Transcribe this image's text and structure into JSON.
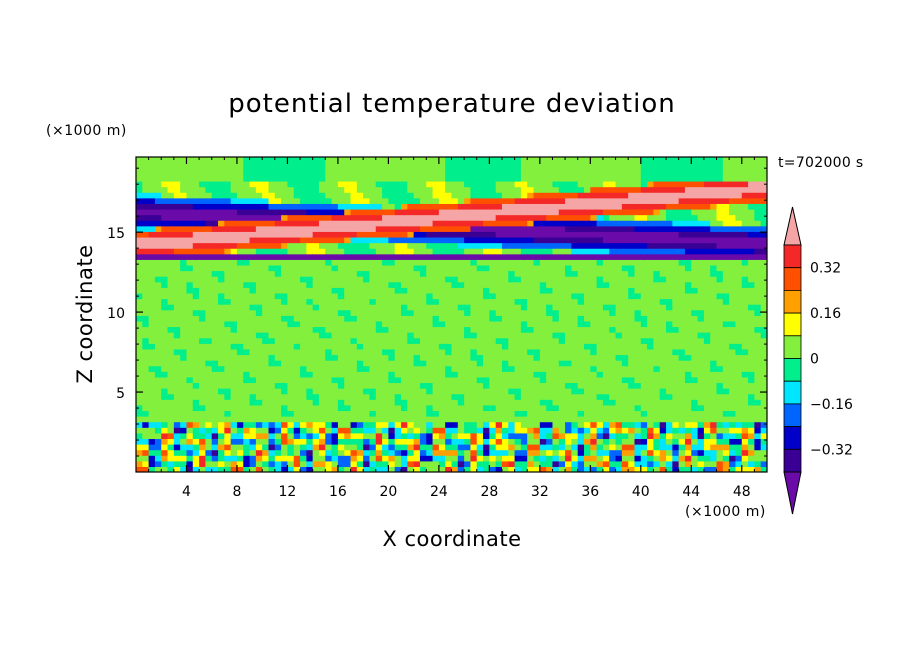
{
  "chart_data": {
    "type": "heatmap",
    "title": "potential temperature deviation",
    "xlabel": "X coordinate",
    "ylabel": "Z coordinate",
    "x_unit": "(×1000 m)",
    "y_unit": "(×1000 m)",
    "time_label": "t=702000 s",
    "xlim": [
      0,
      50
    ],
    "ylim": [
      0,
      19.7
    ],
    "x_ticks": [
      4,
      8,
      12,
      16,
      20,
      24,
      28,
      32,
      36,
      40,
      44,
      48
    ],
    "y_ticks": [
      5,
      10,
      15
    ],
    "x_tick_labels": [
      "4",
      "8",
      "12",
      "16",
      "20",
      "24",
      "28",
      "32",
      "36",
      "40",
      "44",
      "48"
    ],
    "y_tick_labels": [
      "5",
      "10",
      "15"
    ],
    "colorbar": {
      "levels": [
        -0.4,
        -0.32,
        -0.24,
        -0.16,
        -0.08,
        0,
        0.08,
        0.16,
        0.24,
        0.32,
        0.4
      ],
      "label_values": [
        "0.32",
        "0.16",
        "0",
        "−0.16",
        "−0.32"
      ],
      "label_levels": [
        0.32,
        0.16,
        0,
        -0.16,
        -0.32
      ],
      "colors": [
        "#6a0aa8",
        "#3a0095",
        "#0000c8",
        "#0064ff",
        "#00e6ff",
        "#00ee8c",
        "#82f03c",
        "#ffff00",
        "#ffa000",
        "#ff5000",
        "#f52828",
        "#f5a5a5"
      ],
      "extend": "both"
    },
    "field_structures": [
      {
        "kind": "band",
        "description_value": 0.45,
        "x": [
          0,
          50
        ],
        "z_left": 14.2,
        "z_right": 17.8
      },
      {
        "kind": "band",
        "description_value": -0.45,
        "x": [
          0,
          50
        ],
        "z_left": 16.3,
        "z_right": 14.3
      },
      {
        "kind": "layer",
        "z_range": [
          13.4,
          13.8
        ],
        "value": -0.45
      },
      {
        "kind": "layer",
        "z_range": [
          3.2,
          3.6
        ],
        "value": 0.1
      },
      {
        "kind": "turbulent_layer",
        "z_range": [
          0,
          3.4
        ]
      }
    ]
  }
}
